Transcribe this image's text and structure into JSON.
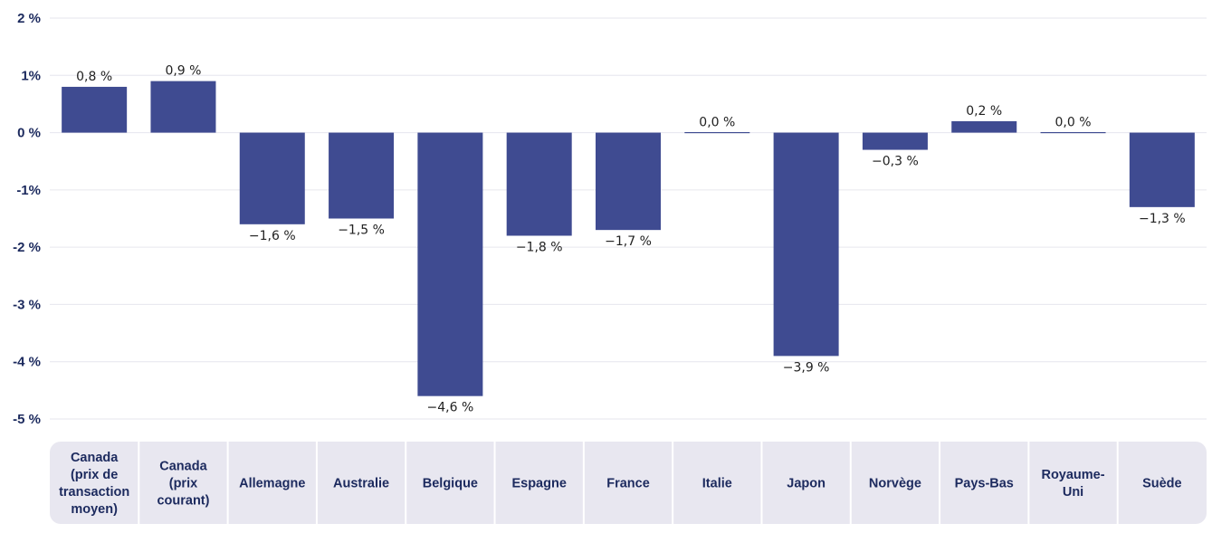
{
  "chart_data": {
    "type": "bar",
    "categories": [
      "Canada (prix de transaction moyen)",
      "Canada (prix courant)",
      "Allemagne",
      "Australie",
      "Belgique",
      "Espagne",
      "France",
      "Italie",
      "Japon",
      "Norvège",
      "Pays-Bas",
      "Royaume-Uni",
      "Suède"
    ],
    "category_lines": [
      [
        "Canada",
        "(prix de",
        "transaction",
        "moyen)"
      ],
      [
        "Canada",
        "(prix",
        "courant)"
      ],
      [
        "Allemagne"
      ],
      [
        "Australie"
      ],
      [
        "Belgique"
      ],
      [
        "Espagne"
      ],
      [
        "France"
      ],
      [
        "Italie"
      ],
      [
        "Japon"
      ],
      [
        "Norvège"
      ],
      [
        "Pays-Bas"
      ],
      [
        "Royaume-",
        "Uni"
      ],
      [
        "Suède"
      ]
    ],
    "values": [
      0.8,
      0.9,
      -1.6,
      -1.5,
      -4.6,
      -1.8,
      -1.7,
      0.0,
      -3.9,
      -0.3,
      0.2,
      0.0,
      -1.3
    ],
    "data_labels": [
      "0,8 %",
      "0,9 %",
      "−1,6 %",
      "−1,5 %",
      "−4,6 %",
      "−1,8 %",
      "−1,7 %",
      "0,0 %",
      "−3,9 %",
      "−0,3 %",
      "0,2 %",
      "0,0 %",
      "−1,3 %"
    ],
    "yticks": [
      2,
      1,
      0,
      -1,
      -2,
      -3,
      -4,
      -5
    ],
    "ytick_labels": [
      "2 %",
      "1%",
      "0 %",
      "-1%",
      "-2 %",
      "-3 %",
      "-4 %",
      "-5 %"
    ],
    "ylim": [
      -5,
      2
    ],
    "title": "",
    "xlabel": "",
    "ylabel": "",
    "grid": true,
    "legend": "none",
    "colors": {
      "bar": "#3f4b91",
      "grid": "#e6e6ee",
      "axis_text": "#1c2a5e",
      "category_band": "#e8e7f0",
      "category_divider": "#ffffff"
    }
  }
}
